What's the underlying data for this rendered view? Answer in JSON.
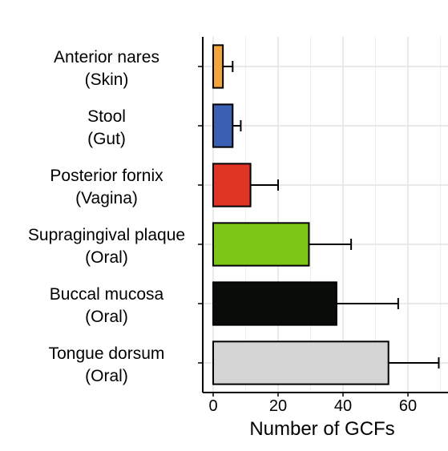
{
  "chart_data": {
    "type": "bar",
    "orientation": "horizontal",
    "xlabel": "Number of GCFs",
    "xlim": [
      -3,
      70
    ],
    "xticks": [
      0,
      20,
      40,
      60
    ],
    "grid": true,
    "categories": [
      {
        "line1": "Anterior nares",
        "line2": "(Skin)",
        "value": 3,
        "error": 3,
        "color": "#f4a43c"
      },
      {
        "line1": "Stool",
        "line2": "(Gut)",
        "value": 6,
        "error": 2.5,
        "color": "#3a60b4"
      },
      {
        "line1": "Posterior fornix",
        "line2": "(Vagina)",
        "value": 11.5,
        "error": 8.5,
        "color": "#e03424"
      },
      {
        "line1": "Supragingival plaque",
        "line2": "(Oral)",
        "value": 29.5,
        "error": 13,
        "color": "#7dc618"
      },
      {
        "line1": "Buccal mucosa",
        "line2": "(Oral)",
        "value": 38,
        "error": 19,
        "color": "#0a0c0a"
      },
      {
        "line1": "Tongue dorsum",
        "line2": "(Oral)",
        "value": 54,
        "error": 15.5,
        "color": "#d5d5d5"
      }
    ]
  }
}
